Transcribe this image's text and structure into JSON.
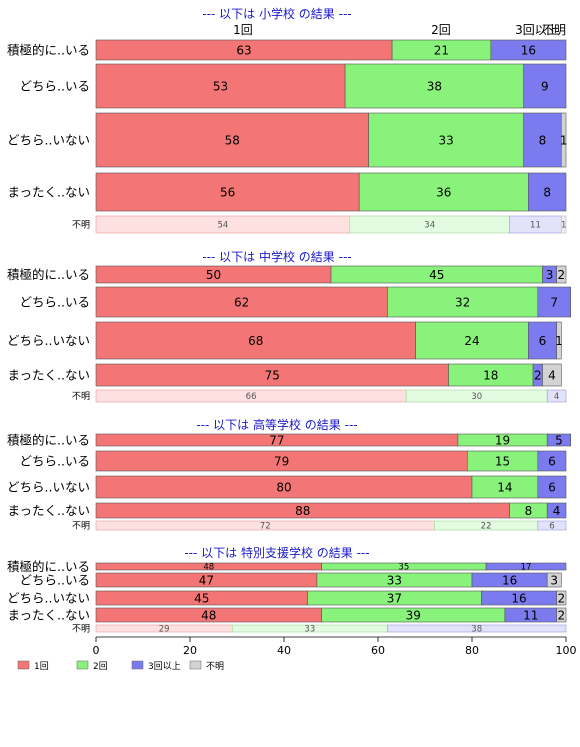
{
  "chart_data": {
    "type": "bar",
    "orientation": "horizontal",
    "stacked": "percent",
    "xlim": [
      0,
      100
    ],
    "x_ticks": [
      0,
      20,
      40,
      60,
      80,
      100
    ],
    "column_labels": [
      "1回",
      "2回",
      "3回以上",
      "不明"
    ],
    "legend": {
      "placement": "bottom-left",
      "items": [
        "1回",
        "2回",
        "3回以上",
        "不明"
      ],
      "colors": [
        "#f47575",
        "#88f27a",
        "#7b7bef",
        "#d3d3d3"
      ]
    },
    "colors": {
      "one": "#f47575",
      "two": "#88f27a",
      "three": "#7b7bef",
      "unknown": "#d3d3d3",
      "one_light": "#fde0e0",
      "two_light": "#e3fbe1",
      "three_light": "#e2e2fb",
      "unknown_light": "#efefef",
      "title": "#1a1acc"
    },
    "groups": [
      {
        "title": "--- 以下は 小学校 の結果 ---",
        "rows": [
          {
            "label": "積極的に..いる",
            "values": [
              63,
              21,
              16,
              0
            ]
          },
          {
            "label": "どちら..いる",
            "values": [
              53,
              38,
              9,
              0
            ]
          },
          {
            "label": "どちら..いない",
            "values": [
              58,
              33,
              8,
              1
            ]
          },
          {
            "label": "まったく..ない",
            "values": [
              56,
              36,
              8,
              0
            ]
          },
          {
            "label": "不明",
            "values": [
              54,
              34,
              11,
              1
            ],
            "minor": true
          }
        ]
      },
      {
        "title": "--- 以下は 中学校 の結果 ---",
        "rows": [
          {
            "label": "積極的に..いる",
            "values": [
              50,
              45,
              3,
              2
            ]
          },
          {
            "label": "どちら..いる",
            "values": [
              62,
              32,
              7,
              0
            ]
          },
          {
            "label": "どちら..いない",
            "values": [
              68,
              24,
              6,
              1
            ]
          },
          {
            "label": "まったく..ない",
            "values": [
              75,
              18,
              2,
              4
            ]
          },
          {
            "label": "不明",
            "values": [
              66,
              30,
              4,
              0
            ],
            "minor": true
          }
        ]
      },
      {
        "title": "--- 以下は 高等学校 の結果 ---",
        "rows": [
          {
            "label": "積極的に..いる",
            "values": [
              77,
              19,
              5,
              0
            ]
          },
          {
            "label": "どちら..いる",
            "values": [
              79,
              15,
              6,
              0
            ]
          },
          {
            "label": "どちら..いない",
            "values": [
              80,
              14,
              6,
              0
            ]
          },
          {
            "label": "まったく..ない",
            "values": [
              88,
              8,
              4,
              0
            ]
          },
          {
            "label": "不明",
            "values": [
              72,
              22,
              6,
              0
            ],
            "minor": true
          }
        ]
      },
      {
        "title": "--- 以下は 特別支援学校 の結果 ---",
        "rows": [
          {
            "label": "積極的に..いる",
            "values": [
              48,
              35,
              17,
              0
            ]
          },
          {
            "label": "どちら..いる",
            "values": [
              47,
              33,
              16,
              3
            ]
          },
          {
            "label": "どちら..いない",
            "values": [
              45,
              37,
              16,
              2
            ]
          },
          {
            "label": "まったく..ない",
            "values": [
              48,
              39,
              11,
              2
            ]
          },
          {
            "label": "不明",
            "values": [
              29,
              33,
              38,
              0
            ],
            "minor": true
          }
        ]
      }
    ]
  }
}
